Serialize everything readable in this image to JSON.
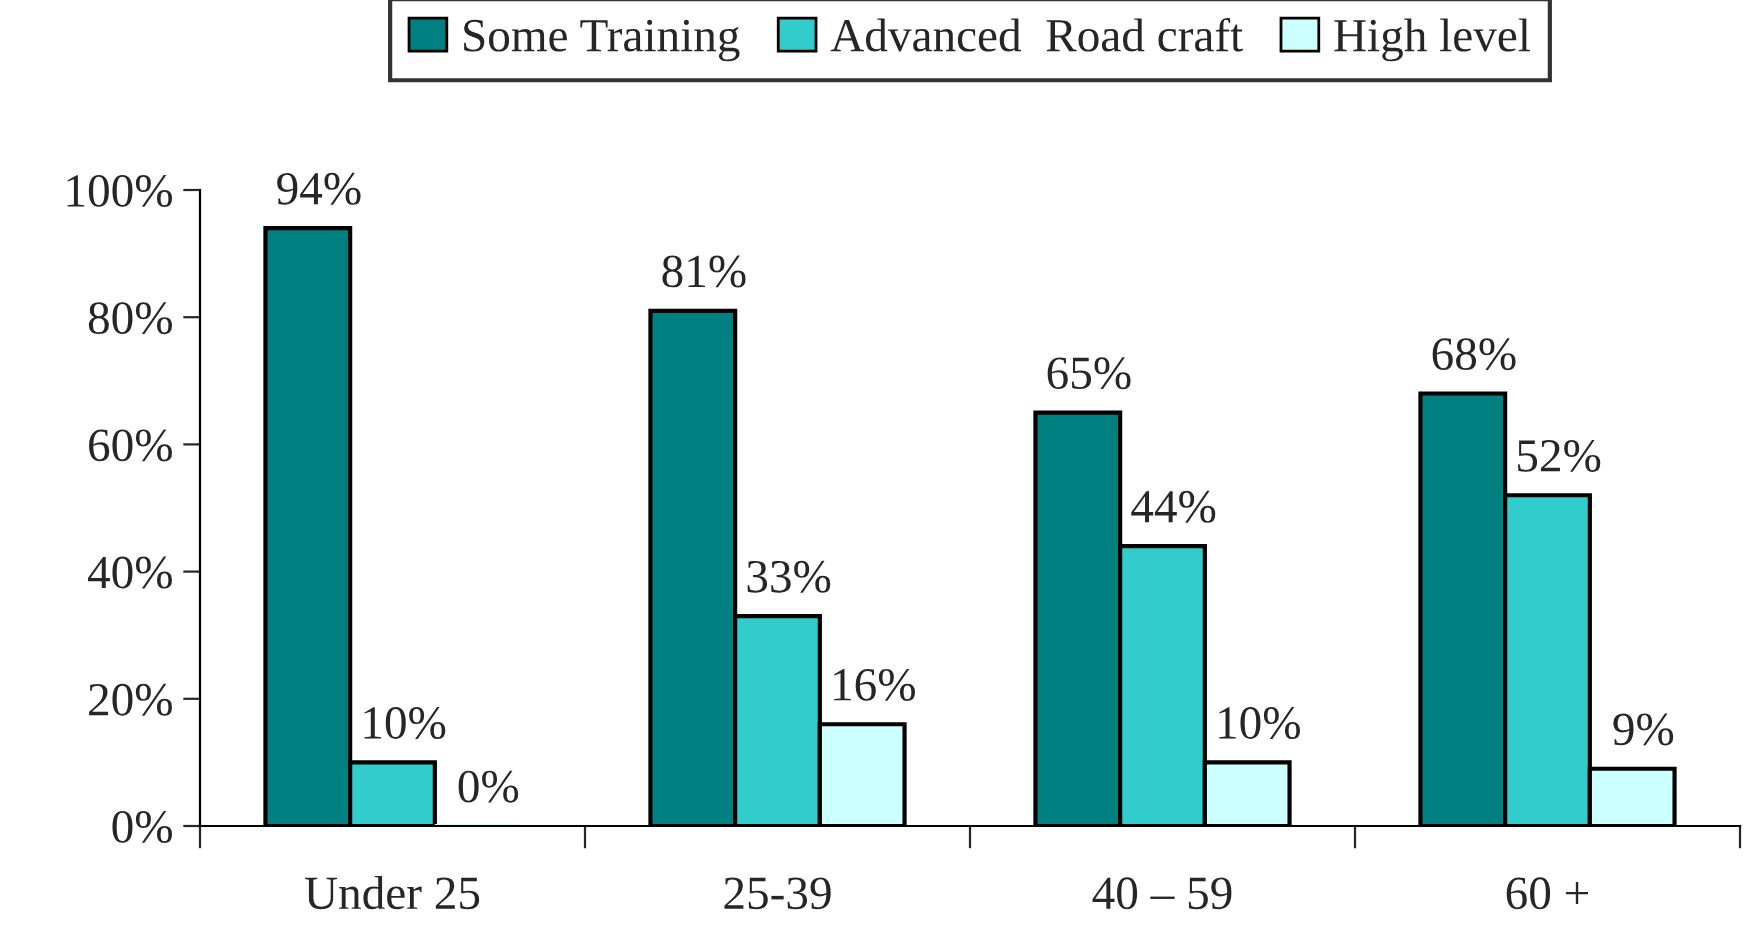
{
  "chart_data": {
    "type": "bar",
    "categories": [
      "Under 25",
      "25-39",
      "40 – 59",
      "60 +"
    ],
    "series": [
      {
        "name": "Some Training",
        "color": "#008080",
        "values": [
          94,
          81,
          65,
          68
        ],
        "value_labels": [
          "94%",
          "81%",
          "65%",
          "68%"
        ]
      },
      {
        "name": "Advanced  Road craft",
        "color": "#33cccc",
        "values": [
          10,
          33,
          44,
          52
        ],
        "value_labels": [
          "10%",
          "33%",
          "44%",
          "52%"
        ]
      },
      {
        "name": "High level",
        "color": "#ccffff",
        "values": [
          0,
          16,
          10,
          9
        ],
        "value_labels": [
          "0%",
          "16%",
          "10%",
          "9%"
        ]
      }
    ],
    "ylim": [
      0,
      100
    ],
    "yticks": [
      {
        "value": 0,
        "label": "0%"
      },
      {
        "value": 20,
        "label": "20%"
      },
      {
        "value": 40,
        "label": "40%"
      },
      {
        "value": 60,
        "label": "60%"
      },
      {
        "value": 80,
        "label": "80%"
      },
      {
        "value": 100,
        "label": "100%"
      }
    ],
    "grid": false,
    "legend": "top"
  }
}
